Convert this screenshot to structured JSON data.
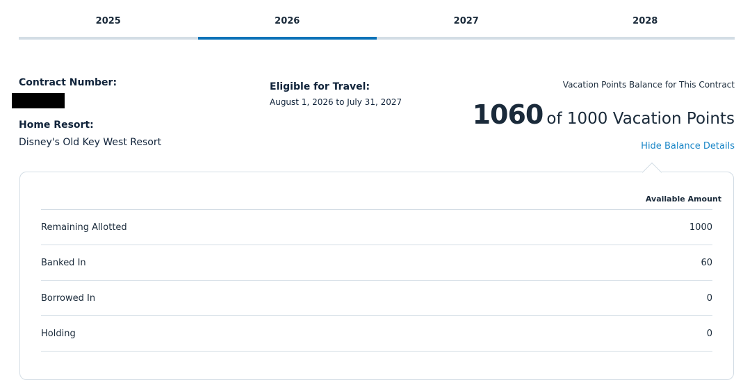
{
  "tabs": [
    {
      "label": "2025"
    },
    {
      "label": "2026",
      "active": true
    },
    {
      "label": "2027"
    },
    {
      "label": "2028"
    }
  ],
  "contract": {
    "number_label": "Contract Number:",
    "home_resort_label": "Home Resort:",
    "home_resort": "Disney's Old Key West Resort",
    "eligible_label": "Eligible for Travel:",
    "eligible_dates": "August 1, 2026 to July 31, 2027"
  },
  "balance": {
    "title": "Vacation Points Balance for This Contract",
    "current": "1060",
    "of_text": "of 1000 Vacation Points",
    "toggle_label": "Hide Balance Details"
  },
  "table": {
    "header": "Available Amount",
    "rows": [
      {
        "label": "Remaining Allotted",
        "value": "1000"
      },
      {
        "label": "Banked In",
        "value": "60"
      },
      {
        "label": "Borrowed In",
        "value": "0"
      },
      {
        "label": "Holding",
        "value": "0"
      }
    ]
  },
  "colors": {
    "accent": "#0a72b8",
    "link": "#1a86c7",
    "text": "#10233a",
    "divider": "#d3dde5"
  }
}
